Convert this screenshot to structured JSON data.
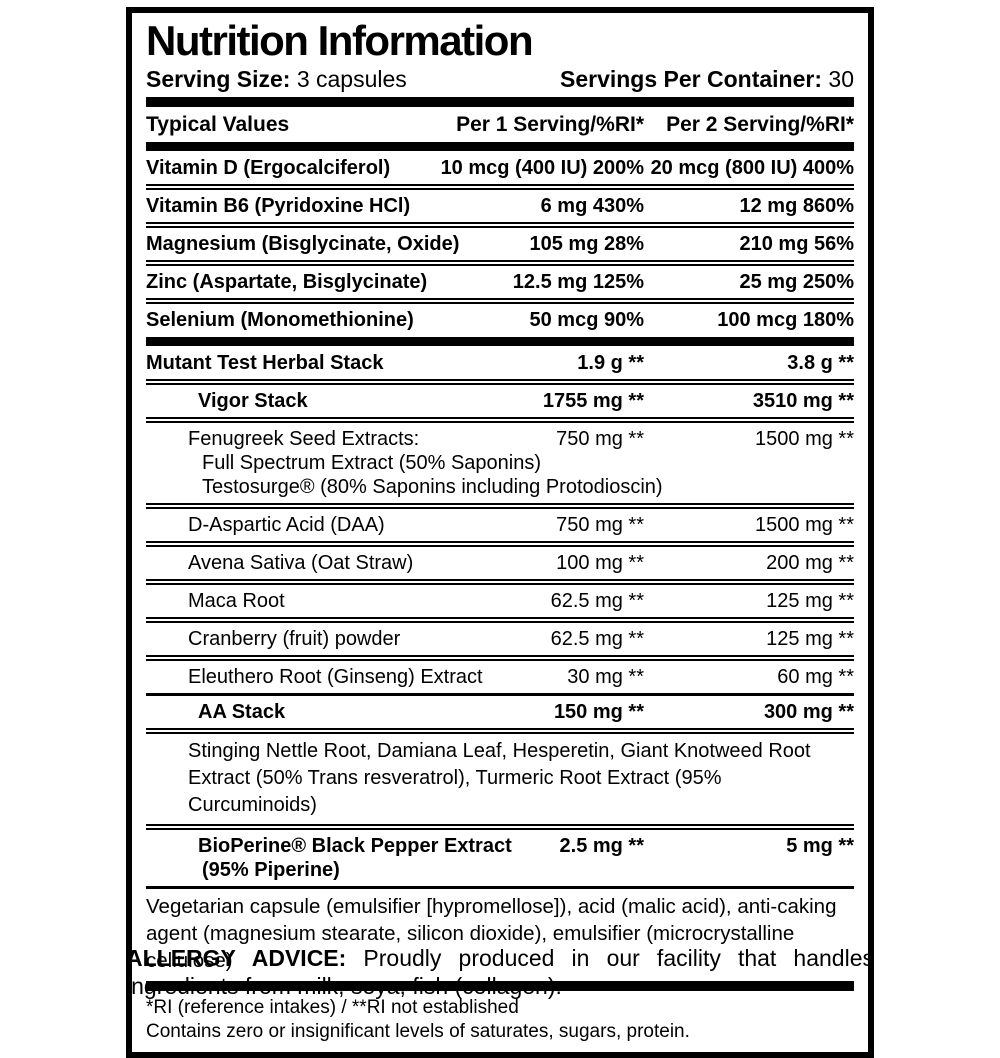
{
  "title": "Nutrition Information",
  "serving": {
    "size_label": "Serving Size:",
    "size_value": "3 capsules",
    "container_label": "Servings Per Container:",
    "container_value": "30"
  },
  "table_header": {
    "col1": "Typical Values",
    "col2": "Per 1 Serving/%RI*",
    "col3": "Per 2 Serving/%RI*"
  },
  "rows": [
    {
      "name": "Vitamin D (Ergocalciferol)",
      "per1": "10 mcg (400 IU) 200%",
      "per2": "20 mcg (800 IU) 400%"
    },
    {
      "name": "Vitamin B6 (Pyridoxine HCl)",
      "per1": "6 mg 430%",
      "per2": "12 mg 860%"
    },
    {
      "name": "Magnesium (Bisglycinate, Oxide)",
      "per1": "105 mg 28%",
      "per2": "210 mg 56%"
    },
    {
      "name": "Zinc (Aspartate, Bisglycinate)",
      "per1": "12.5 mg 125%",
      "per2": "25 mg 250%"
    },
    {
      "name": "Selenium (Monomethionine)",
      "per1": "50 mcg 90%",
      "per2": "100 mcg 180%"
    },
    {
      "name": "Mutant Test Herbal Stack",
      "per1": "1.9 g **",
      "per2": "3.8 g **"
    },
    {
      "name": "Vigor Stack",
      "per1": "1755 mg **",
      "per2": "3510 mg **"
    },
    {
      "name": "Fenugreek Seed Extracts:",
      "per1": "750 mg **",
      "per2": "1500 mg **",
      "sublines": [
        "Full Spectrum Extract (50% Saponins)",
        "Testosurge® (80% Saponins including Protodioscin)"
      ]
    },
    {
      "name": "D-Aspartic Acid (DAA)",
      "per1": "750 mg **",
      "per2": "1500 mg **"
    },
    {
      "name": "Avena Sativa (Oat Straw)",
      "per1": "100 mg **",
      "per2": "200 mg **"
    },
    {
      "name": "Maca Root",
      "per1": "62.5 mg **",
      "per2": "125 mg **"
    },
    {
      "name": "Cranberry (fruit) powder",
      "per1": "62.5 mg **",
      "per2": "125 mg **"
    },
    {
      "name": "Eleuthero Root (Ginseng) Extract",
      "per1": "30 mg **",
      "per2": "60 mg **"
    },
    {
      "name": "AA Stack",
      "per1": "150 mg **",
      "per2": "300 mg **"
    },
    {
      "name": "BioPerine® Black Pepper Extract",
      "per1": "2.5 mg **",
      "per2": "5 mg **",
      "sublines": [
        "(95% Piperine)"
      ]
    }
  ],
  "aa_stack_ingredients": "Stinging Nettle Root, Damiana Leaf, Hesperetin, Giant Knotweed Root Extract (50% Trans resveratrol), Turmeric Root Extract (95% Curcuminoids)",
  "other_ingredients": "Vegetarian capsule (emulsifier [hypromellose]), acid (malic acid), anti-caking agent (magnesium stearate, silicon dioxide), emulsifier (microcrystalline cellulose)",
  "footnotes": {
    "line1": "*RI (reference intakes) / **RI not established",
    "line2": "Contains zero or insignificant levels of saturates, sugars, protein."
  },
  "allergy": {
    "label": "ALLERGY ADVICE:",
    "text": " Proudly produced in our facility that handles ingredients from milk, soya, fish (collagen)."
  },
  "colors": {
    "ink": "#000000",
    "paper": "#ffffff"
  }
}
